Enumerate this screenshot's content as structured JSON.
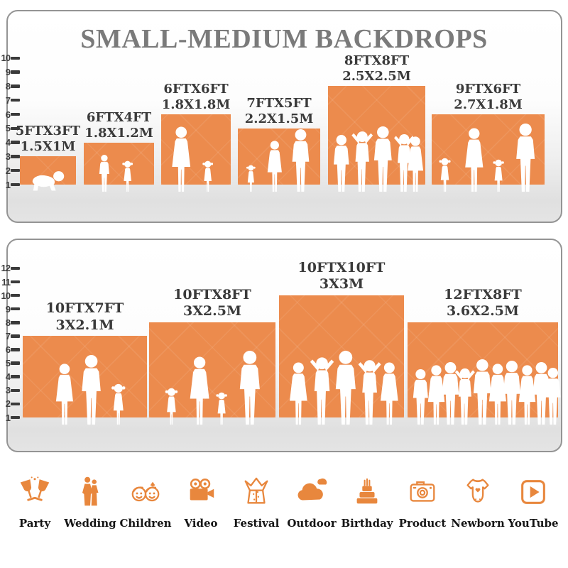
{
  "title": "SMALL-MEDIUM BACKDROPS",
  "colors": {
    "accent": "#ec8b4d",
    "icon": "#e8873d",
    "title": "#7a7a7a",
    "label": "#3a3a3a"
  },
  "panels": [
    {
      "ticks": [
        "10",
        "9",
        "8",
        "7",
        "6",
        "5",
        "4",
        "3",
        "2",
        "1"
      ],
      "backdrops": [
        {
          "size_ft": "5FTX3FT",
          "size_m": "1.5X1M"
        },
        {
          "size_ft": "6FTX4FT",
          "size_m": "1.8X1.2M"
        },
        {
          "size_ft": "6FTX6FT",
          "size_m": "1.8X1.8M"
        },
        {
          "size_ft": "7FTX5FT",
          "size_m": "2.2X1.5M"
        },
        {
          "size_ft": "8FTX8FT",
          "size_m": "2.5X2.5M"
        },
        {
          "size_ft": "9FTX6FT",
          "size_m": "2.7X1.8M"
        }
      ]
    },
    {
      "ticks": [
        "12",
        "11",
        "10",
        "9",
        "8",
        "7",
        "6",
        "5",
        "4",
        "3",
        "2",
        "1"
      ],
      "backdrops": [
        {
          "size_ft": "10FTX7FT",
          "size_m": "3X2.1M"
        },
        {
          "size_ft": "10FTX8FT",
          "size_m": "3X2.5M"
        },
        {
          "size_ft": "10FTX10FT",
          "size_m": "3X3M"
        },
        {
          "size_ft": "12FTX8FT",
          "size_m": "3.6X2.5M"
        }
      ]
    }
  ],
  "categories": [
    {
      "label": "Party",
      "icon": "party-icon"
    },
    {
      "label": "Wedding",
      "icon": "wedding-icon"
    },
    {
      "label": "Children",
      "icon": "children-icon"
    },
    {
      "label": "Video",
      "icon": "video-icon"
    },
    {
      "label": "Festival",
      "icon": "festival-icon"
    },
    {
      "label": "Outdoor",
      "icon": "outdoor-icon"
    },
    {
      "label": "Birthday",
      "icon": "birthday-icon"
    },
    {
      "label": "Product",
      "icon": "product-icon"
    },
    {
      "label": "Newborn",
      "icon": "newborn-icon"
    },
    {
      "label": "YouTube",
      "icon": "youtube-icon"
    }
  ]
}
